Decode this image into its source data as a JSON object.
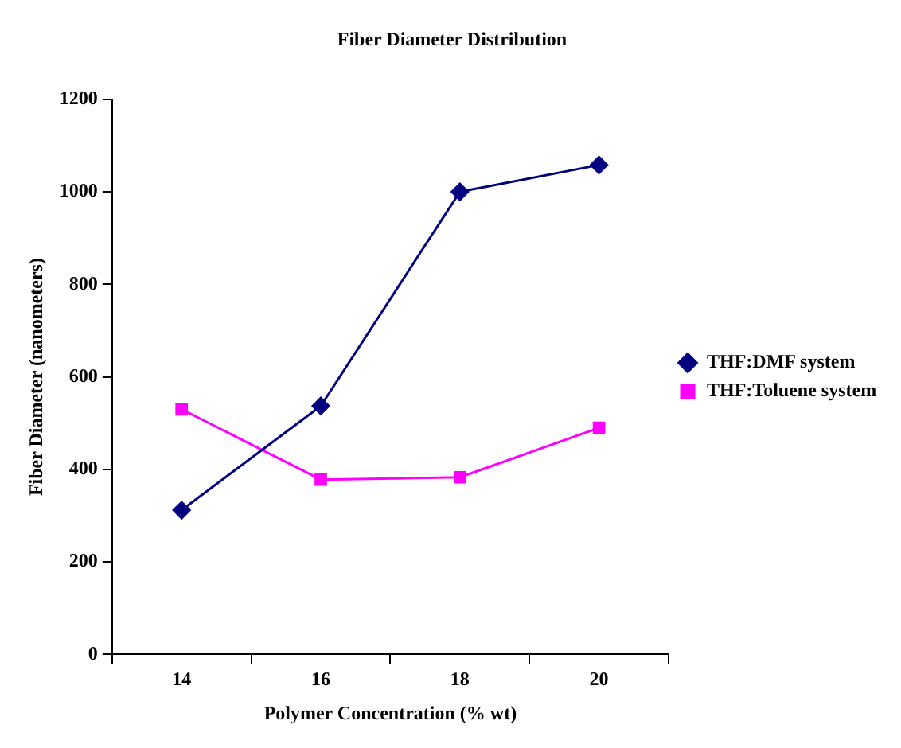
{
  "chart_data": {
    "type": "line",
    "title": "Fiber Diameter Distribution",
    "xlabel": "Polymer Concentration (% wt)",
    "ylabel": "Fiber Diameter (nanometers)",
    "categories": [
      "14",
      "16",
      "18",
      "20"
    ],
    "series": [
      {
        "name": "THF:DMF system",
        "color": "#000080",
        "marker": "diamond",
        "values": [
          312,
          537,
          1000,
          1058
        ]
      },
      {
        "name": "THF:Toluene system",
        "color": "#ff00ff",
        "marker": "square",
        "values": [
          530,
          378,
          383,
          490
        ]
      }
    ],
    "ylim": [
      0,
      1200
    ],
    "yticks": [
      0,
      200,
      400,
      600,
      800,
      1000,
      1200
    ],
    "grid": false,
    "legend": "right",
    "line_style": "solid"
  }
}
